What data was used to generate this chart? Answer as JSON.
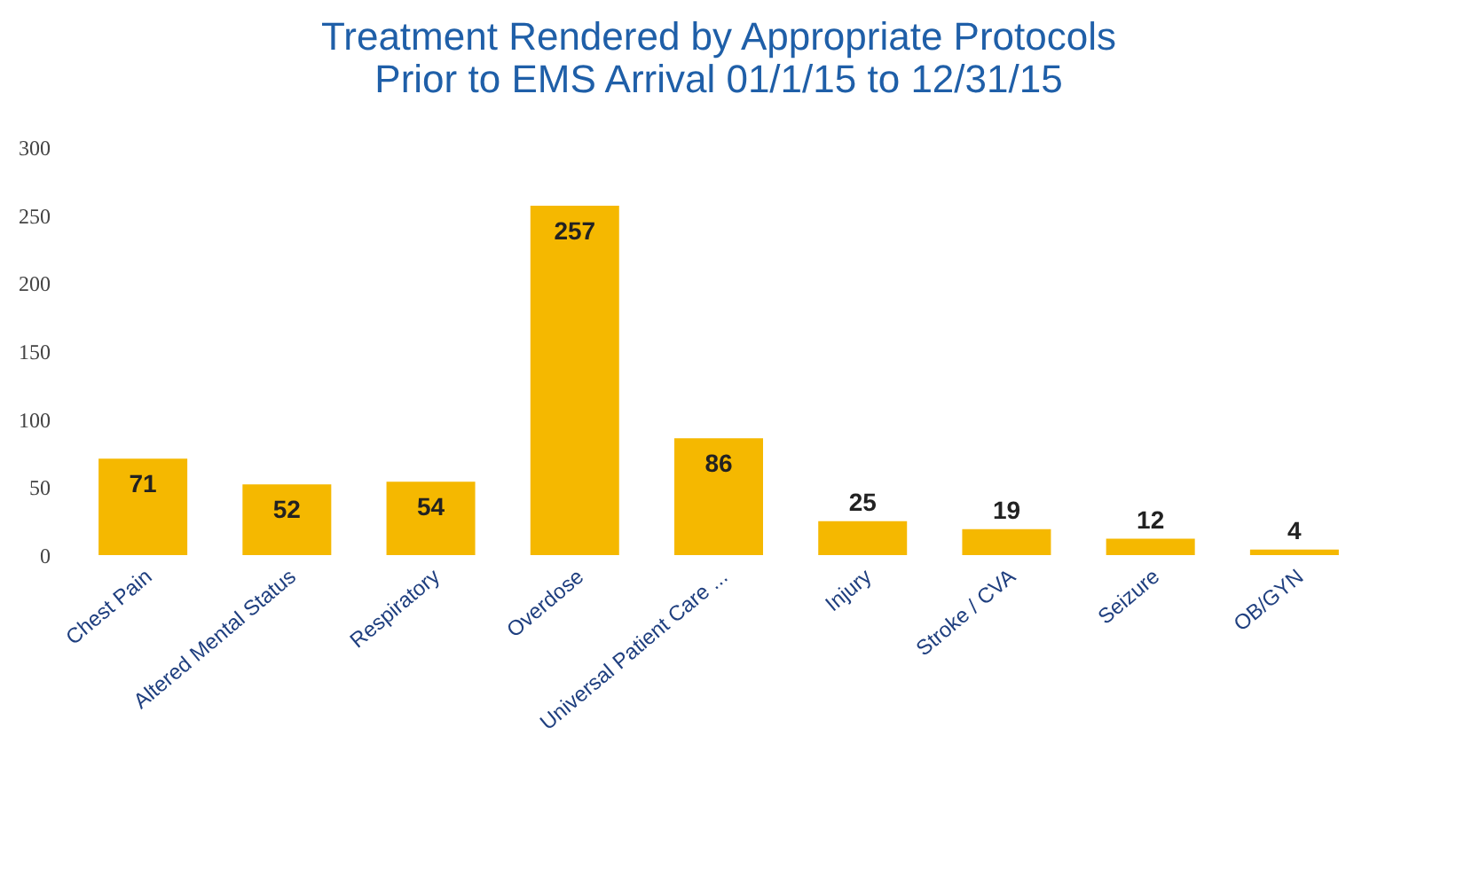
{
  "chart_data": {
    "type": "bar",
    "title": [
      "Treatment Rendered by Appropriate Protocols",
      "Prior to EMS Arrival 01/1/15 to 12/31/15"
    ],
    "categories": [
      "Chest Pain",
      "Altered Mental Status",
      "Respiratory",
      "Overdose",
      "Universal Patient Care ...",
      "Injury",
      "Stroke / CVA",
      "Seizure",
      "OB/GYN"
    ],
    "values": [
      71,
      52,
      54,
      257,
      86,
      25,
      19,
      12,
      4
    ],
    "color": "#f5b800",
    "ylim": [
      0,
      300
    ],
    "yticks": [
      0,
      50,
      100,
      150,
      200,
      250,
      300
    ],
    "grid": false,
    "data_labels": true
  }
}
